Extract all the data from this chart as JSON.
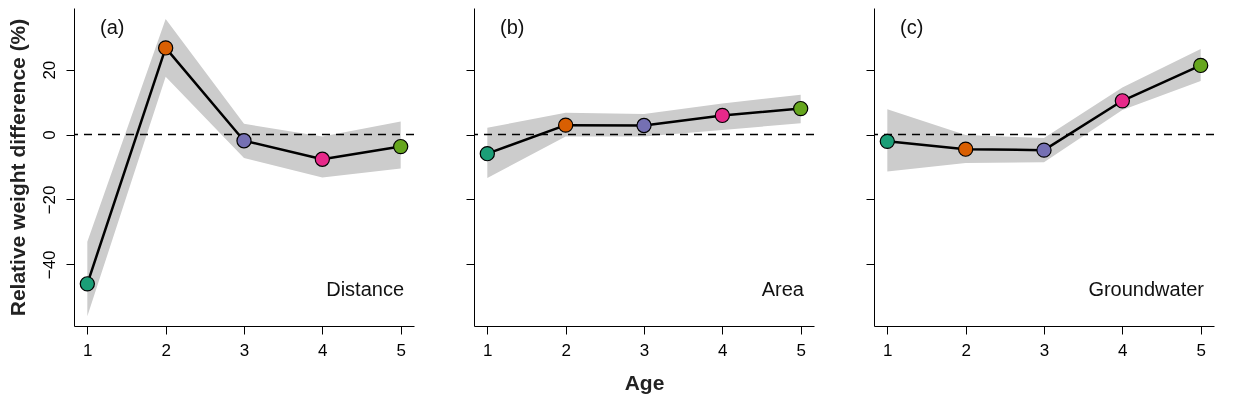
{
  "chart_data": [
    {
      "type": "line",
      "ylabel": "Relative weight difference (%)",
      "annotations": [
        "(a)",
        "Distance"
      ],
      "x": [
        1,
        2,
        3,
        4,
        5
      ],
      "xlim": [
        0.83,
        5.17
      ],
      "xticks": [
        1,
        2,
        3,
        4,
        5
      ],
      "ylim": [
        -59,
        39
      ],
      "yticks": [
        -40,
        -20,
        0,
        20
      ],
      "grid": false,
      "marker": "circle",
      "ref_lines": [
        {
          "axis": "y",
          "value": 0,
          "line_style": "dashed"
        }
      ],
      "series": [
        {
          "color": "#000000",
          "colors": [
            "#1b9e77",
            "#d95f02",
            "#7570b3",
            "#e7298a",
            "#66a61e"
          ],
          "values": [
            -46,
            26.7,
            -1.9,
            -7.6,
            -3.7
          ],
          "lower": [
            -56,
            17.8,
            -7.2,
            -13.2,
            -10.5
          ],
          "upper": [
            -33,
            35.6,
            3.3,
            -0.6,
            4
          ]
        }
      ]
    },
    {
      "type": "line",
      "xlabel": "Age",
      "annotations": [
        "(b)",
        "Area"
      ],
      "x": [
        1,
        2,
        3,
        4,
        5
      ],
      "xlim": [
        0.83,
        5.17
      ],
      "xticks": [
        1,
        2,
        3,
        4,
        5
      ],
      "ylim": [
        -59,
        39
      ],
      "yticks": [
        -40,
        -20,
        0,
        20
      ],
      "tick_labels": "x",
      "grid": false,
      "marker": "circle",
      "ref_lines": [
        {
          "axis": "y",
          "value": 0,
          "line_style": "dashed"
        }
      ],
      "series": [
        {
          "color": "#000000",
          "colors": [
            "#1b9e77",
            "#d95f02",
            "#7570b3",
            "#e7298a",
            "#66a61e"
          ],
          "values": [
            -5.9,
            2.9,
            2.8,
            5.9,
            8.0
          ],
          "lower": [
            -13.4,
            -0.6,
            -0.6,
            1.4,
            3.5
          ],
          "upper": [
            2.1,
            6.7,
            6.3,
            9.6,
            12.3
          ]
        }
      ]
    },
    {
      "type": "line",
      "annotations": [
        "(c)",
        "Groundwater"
      ],
      "x": [
        1,
        2,
        3,
        4,
        5
      ],
      "xlim": [
        0.83,
        5.17
      ],
      "xticks": [
        1,
        2,
        3,
        4,
        5
      ],
      "ylim": [
        -59,
        39
      ],
      "yticks": [
        -40,
        -20,
        0,
        20
      ],
      "tick_labels": "x",
      "grid": false,
      "marker": "circle",
      "ref_lines": [
        {
          "axis": "y",
          "value": 0,
          "line_style": "dashed"
        }
      ],
      "series": [
        {
          "color": "#000000",
          "colors": [
            "#1b9e77",
            "#d95f02",
            "#7570b3",
            "#e7298a",
            "#66a61e"
          ],
          "values": [
            -2.1,
            -4.5,
            -4.8,
            10.4,
            21.3
          ],
          "lower": [
            -11.4,
            -8.8,
            -8.5,
            7.6,
            16.5
          ],
          "upper": [
            7.8,
            -0.1,
            -1.1,
            14.5,
            26.4
          ]
        }
      ]
    }
  ]
}
